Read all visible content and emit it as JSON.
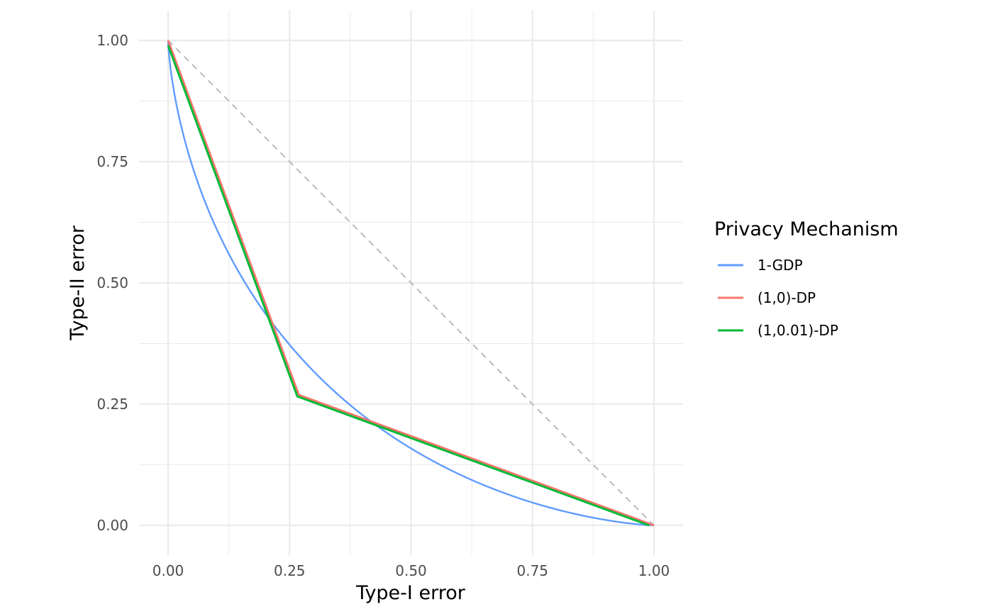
{
  "chart_data": {
    "type": "line",
    "xlabel": "Type-I error",
    "ylabel": "Type-II error",
    "xlim": [
      0,
      1
    ],
    "ylim": [
      0,
      1
    ],
    "x_ticks": [
      "0.00",
      "0.25",
      "0.50",
      "0.75",
      "1.00"
    ],
    "y_ticks": [
      "0.00",
      "0.25",
      "0.50",
      "0.75",
      "1.00"
    ],
    "grid": true,
    "legend": {
      "title": "Privacy Mechanism",
      "position": "right"
    },
    "reference_line": {
      "style": "dashed",
      "color": "#bfbfbf",
      "points": [
        [
          0,
          1
        ],
        [
          1,
          0
        ]
      ]
    },
    "series": [
      {
        "name": "1-GDP",
        "color": "#619CFF",
        "type": "curve",
        "mu": 1,
        "points": [
          [
            0,
            1
          ],
          [
            0.005,
            0.91
          ],
          [
            0.01,
            0.87
          ],
          [
            0.025,
            0.8
          ],
          [
            0.05,
            0.72
          ],
          [
            0.1,
            0.61
          ],
          [
            0.15,
            0.52
          ],
          [
            0.2,
            0.44
          ],
          [
            0.25,
            0.38
          ],
          [
            0.3,
            0.32
          ],
          [
            0.4,
            0.23
          ],
          [
            0.5,
            0.16
          ],
          [
            0.6,
            0.1
          ],
          [
            0.7,
            0.06
          ],
          [
            0.8,
            0.03
          ],
          [
            0.9,
            0.01
          ],
          [
            1,
            0
          ]
        ]
      },
      {
        "name": "(1,0)-DP",
        "color": "#F8766D",
        "type": "polyline",
        "points": [
          [
            0,
            1
          ],
          [
            0.269,
            0.269
          ],
          [
            1,
            0
          ]
        ]
      },
      {
        "name": "(1,0.01)-DP",
        "color": "#00BA38",
        "type": "polyline",
        "points": [
          [
            0,
            0.99
          ],
          [
            0.266,
            0.266
          ],
          [
            0.99,
            0
          ]
        ]
      }
    ]
  }
}
